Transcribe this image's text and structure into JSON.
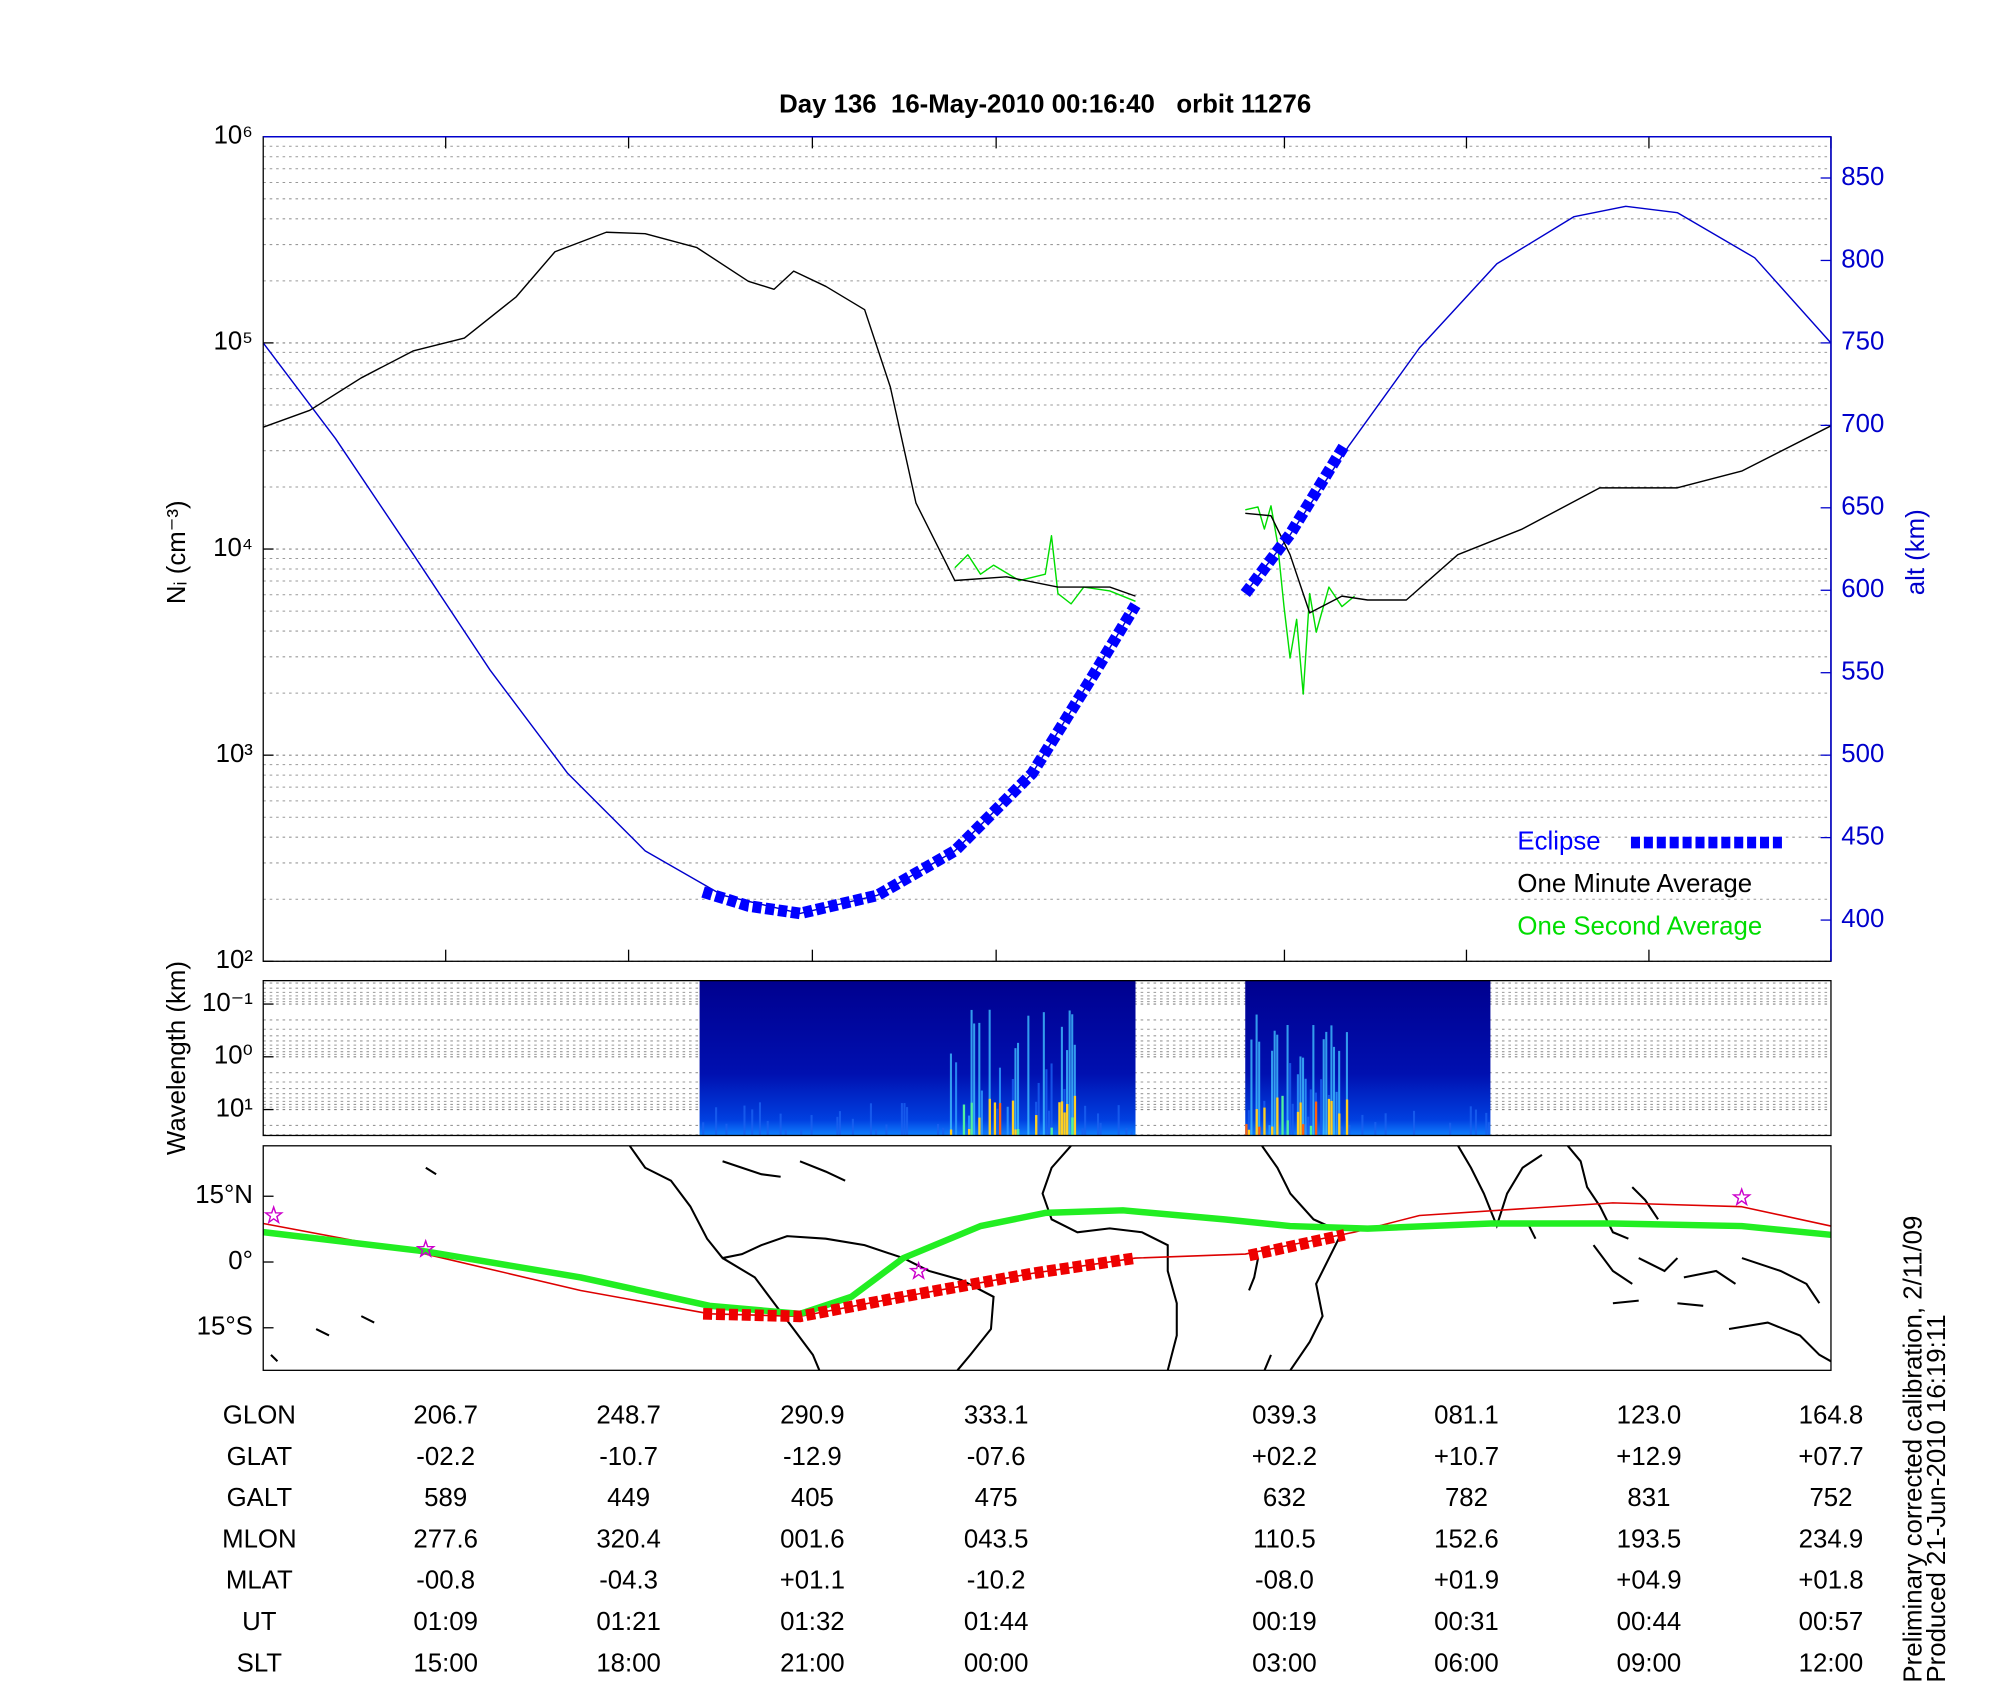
{
  "chart_data": [
    {
      "type": "line",
      "title": "Day 136  16-May-2010 00:16:40   orbit 11276",
      "ylabel": "Nᵢ (cm⁻³)",
      "y2label": "alt (km)",
      "log_y": true,
      "ylim": [
        100,
        1000000
      ],
      "yticks": [
        {
          "value": 100,
          "label": "10²"
        },
        {
          "value": 1000,
          "label": "10³"
        },
        {
          "value": 10000,
          "label": "10⁴"
        },
        {
          "value": 100000,
          "label": "10⁵"
        },
        {
          "value": 1000000,
          "label": "10⁶"
        }
      ],
      "y2lim": [
        375,
        875
      ],
      "y2ticks": [
        400,
        450,
        500,
        550,
        600,
        650,
        700,
        750,
        800,
        850
      ],
      "y2color": "#0000cc",
      "xlim": [
        164.8,
        524.8
      ],
      "xticks": [
        206.7,
        248.7,
        290.9,
        333.1,
        399.3,
        441.1,
        483.0,
        524.8
      ],
      "grid": true,
      "legend": "lower right",
      "series": [
        {
          "name": "Eclipse",
          "color": "#0000ff",
          "axis": "y2",
          "line_style": "dashed",
          "x": [
            265.8,
            276.2,
            288.1,
            305.8,
            323.6,
            341.4,
            356.2,
            365.1,
            null,
            390.3,
            400.6,
            413.1
          ],
          "values": [
            417,
            408.6,
            404,
            415,
            442,
            489,
            552,
            591,
            null,
            598,
            634,
            688
          ]
        },
        {
          "name": "One Minute Average",
          "color": "#000000",
          "x": [
            164.8,
            175.5,
            187.3,
            199.2,
            211.0,
            222.9,
            231.8,
            243.6,
            252.5,
            264.4,
            276.2,
            282.1,
            286.6,
            294.0,
            302.9,
            308.8,
            314.7,
            323.6,
            335.5,
            347.3,
            359.2,
            365.1,
            null,
            390.3,
            396.2,
            400.6,
            405.1,
            412.5,
            418.4,
            427.3,
            439.1,
            453.9,
            471.7,
            489.5,
            504.3,
            524.8
          ],
          "values": [
            39000,
            47100,
            67600,
            91400,
            105500,
            167500,
            277000,
            344000,
            339000,
            290000,
            199000,
            182000,
            223000,
            188000,
            145000,
            61100,
            16700,
            7030,
            7330,
            6540,
            6540,
            5910,
            null,
            14900,
            14500,
            9380,
            4900,
            5910,
            5660,
            5660,
            9380,
            12500,
            19800,
            19800,
            23900,
            39600
          ]
        },
        {
          "name": "One Second Average",
          "color": "#00dd00",
          "x": [
            323.6,
            326.6,
            329.5,
            332.5,
            338.4,
            344.4,
            345.8,
            347.3,
            350.3,
            353.2,
            359.2,
            365.1,
            null,
            390.3,
            393.2,
            394.7,
            396.2,
            397.7,
            399.2,
            400.6,
            402.1,
            403.6,
            405.1,
            406.6,
            409.5,
            412.5,
            415.4
          ],
          "values": [
            8110,
            9380,
            7550,
            8350,
            7030,
            7550,
            11600,
            6080,
            5420,
            6540,
            6260,
            5580,
            null,
            15500,
            16000,
            12500,
            16200,
            10800,
            5260,
            2960,
            4560,
            1980,
            6080,
            3950,
            6540,
            5260,
            5910
          ]
        },
        {
          "color": "#0000cc",
          "axis": "y2",
          "x": [
            164.8,
            181.4,
            199.2,
            216.9,
            234.7,
            252.5,
            270.3,
            288.1,
            305.8,
            323.6,
            341.4,
            356.2,
            365.1,
            null,
            390.3,
            400.6,
            414.2,
            430.3,
            448.1,
            465.8,
            477.7,
            489.5,
            507.3,
            524.8
          ],
          "values": [
            750,
            692,
            622,
            551.6,
            489,
            442,
            415,
            404,
            415,
            442,
            489,
            552,
            591,
            null,
            598.4,
            633.6,
            688,
            747,
            798,
            826.6,
            832.8,
            829,
            801.6,
            750
          ]
        }
      ]
    },
    {
      "type": "spectrogram",
      "ylabel": "Wavelength (km)",
      "log_y": true,
      "ylim": [
        31,
        0.036
      ],
      "yticks": [
        {
          "value": 0.1,
          "label": "10⁻¹"
        },
        {
          "value": 1,
          "label": "10⁰"
        },
        {
          "value": 10,
          "label": "10¹"
        }
      ],
      "xlim": [
        164.8,
        524.8
      ],
      "grid": true,
      "segments": [
        [
          265.0,
          365.1
        ],
        [
          390.3,
          446.6
        ]
      ]
    },
    {
      "type": "map",
      "ylim": [
        -24.7,
        26.5
      ],
      "yticks": [
        {
          "value": 15,
          "label": "15°N"
        },
        {
          "value": 0,
          "label": "0°"
        },
        {
          "value": -15,
          "label": "15°S"
        }
      ],
      "xlim": [
        164.8,
        524.8
      ],
      "series": [
        {
          "color": "#dd0000",
          "x": [
            164.8,
            202.1,
            237.7,
            267.3,
            288.1,
            311.8,
            341.4,
            365.1,
            390.3,
            415.4,
            430.3,
            474.7,
            504.3,
            524.8
          ],
          "values": [
            8.8,
            1.8,
            -6.5,
            -11.8,
            -12.4,
            -7.9,
            -2.6,
            0.9,
            1.8,
            6.8,
            10.6,
            13.5,
            12.6,
            8.2
          ]
        },
        {
          "color": "#22ee22",
          "x": [
            164.8,
            202.1,
            237.7,
            267.3,
            288.1,
            299.9,
            311.8,
            329.5,
            344.4,
            362.2,
            385.8,
            400.6,
            418.4,
            446.7,
            474.7,
            504.3,
            524.8
          ],
          "values": [
            6.8,
            2.4,
            -3.5,
            -10.0,
            -11.8,
            -7.9,
            0.9,
            8.2,
            11.2,
            11.8,
            9.7,
            8.2,
            7.6,
            8.8,
            8.8,
            8.2,
            6.2
          ]
        },
        {
          "color": "#ee0000",
          "line_style": "dashed",
          "x": [
            265.8,
            288.1,
            311.8,
            341.4,
            365.1,
            null,
            391.2,
            413.1
          ],
          "values": [
            -11.8,
            -12.4,
            -7.9,
            -2.6,
            0.9,
            null,
            1.5,
            6.2
          ]
        }
      ],
      "markers": {
        "color": "#cc00cc",
        "x": [
          167.2,
          202.1,
          315.3,
          504.3
        ],
        "values": [
          10.6,
          2.9,
          -2.1,
          14.7
        ]
      }
    }
  ],
  "table": {
    "rows": [
      [
        "GLON",
        "206.7",
        "248.7",
        "290.9",
        "333.1",
        "039.3",
        "081.1",
        "123.0",
        "164.8"
      ],
      [
        "GLAT",
        "-02.2",
        "-10.7",
        "-12.9",
        "-07.6",
        "+02.2",
        "+10.7",
        "+12.9",
        "+07.7"
      ],
      [
        "GALT",
        "589",
        "449",
        "405",
        "475",
        "632",
        "782",
        "831",
        "752"
      ],
      [
        "MLON",
        "277.6",
        "320.4",
        "001.6",
        "043.5",
        "110.5",
        "152.6",
        "193.5",
        "234.9"
      ],
      [
        "MLAT",
        "-00.8",
        "-04.3",
        "+01.1",
        "-10.2",
        "-08.0",
        "+01.9",
        "+04.9",
        "+01.8"
      ],
      [
        "UT",
        "01:09",
        "01:21",
        "01:32",
        "01:44",
        "00:19",
        "00:31",
        "00:44",
        "00:57"
      ],
      [
        "SLT",
        "15:00",
        "18:00",
        "21:00",
        "00:00",
        "03:00",
        "06:00",
        "09:00",
        "12:00"
      ]
    ]
  },
  "footer": [
    "Preliminary corrected calibration, 2/11/09",
    "Produced 21-Jun-2010 16:19:11"
  ]
}
